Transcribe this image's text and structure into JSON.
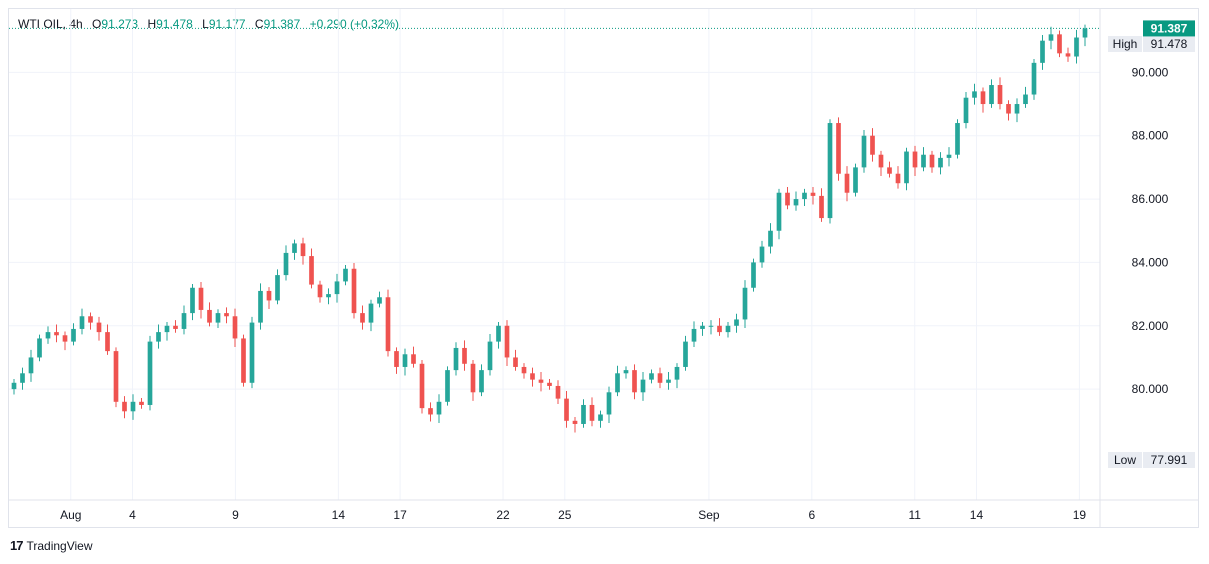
{
  "legend": {
    "symbol": "WTI OIL",
    "interval": "4h",
    "open_label": "O",
    "open": "91.273",
    "high_label": "H",
    "high": "91.478",
    "low_label": "L",
    "low": "91.177",
    "close_label": "C",
    "close": "91.387",
    "change": "+0.290 (+0.32%)"
  },
  "badges": {
    "high_label": "High",
    "high_value": "91.478",
    "last_value": "91.387",
    "low_label": "Low",
    "low_value": "77.991"
  },
  "footer": {
    "brand": "TradingView",
    "logo": "17"
  },
  "colors": {
    "up": "#26a69a",
    "down": "#ef5350",
    "last": "#089981",
    "grid": "#f0f3fa",
    "axis_text": "#131722"
  },
  "chart_data": {
    "type": "candlestick",
    "title": "WTI OIL, 4h",
    "ylim": [
      76.5,
      92.0
    ],
    "y_ticks": [
      80,
      82,
      84,
      86,
      88,
      90
    ],
    "y_tick_labels": [
      "80.000",
      "82.000",
      "84.000",
      "86.000",
      "88.000",
      "90.000"
    ],
    "x_tick_labels": [
      "Aug",
      "4",
      "9",
      "14",
      "17",
      "22",
      "25",
      "Sep",
      "6",
      "11",
      "14",
      "19"
    ],
    "x_tick_dates": [
      "2023-08-01",
      "2023-08-04",
      "2023-08-09",
      "2023-08-14",
      "2023-08-17",
      "2023-08-22",
      "2023-08-25",
      "2023-09-01",
      "2023-09-06",
      "2023-09-11",
      "2023-09-14",
      "2023-09-19"
    ],
    "high": 91.478,
    "low": 77.991,
    "last": 91.387,
    "grid": true,
    "close_series": [
      80.2,
      80.5,
      81.0,
      81.6,
      81.8,
      81.7,
      81.5,
      81.9,
      82.3,
      82.1,
      81.8,
      81.2,
      79.6,
      79.3,
      79.6,
      79.5,
      81.5,
      81.8,
      82.0,
      81.9,
      82.4,
      83.2,
      82.5,
      82.1,
      82.4,
      82.3,
      81.6,
      80.2,
      82.1,
      83.1,
      82.8,
      83.6,
      84.3,
      84.6,
      84.2,
      83.3,
      82.9,
      83.0,
      83.4,
      83.8,
      82.4,
      82.1,
      82.7,
      82.9,
      81.2,
      80.7,
      81.1,
      80.8,
      79.4,
      79.2,
      79.6,
      80.6,
      81.3,
      80.8,
      79.9,
      80.6,
      81.5,
      82.0,
      81.0,
      80.7,
      80.5,
      80.3,
      80.2,
      80.1,
      79.7,
      79.0,
      78.9,
      79.5,
      79.0,
      79.2,
      79.9,
      80.5,
      80.6,
      79.9,
      80.3,
      80.5,
      80.2,
      80.3,
      80.7,
      81.5,
      81.9,
      82.0,
      82.0,
      81.8,
      82.0,
      82.2,
      83.2,
      84.0,
      84.5,
      85.0,
      86.2,
      85.8,
      86.0,
      86.2,
      86.1,
      85.4,
      88.4,
      86.8,
      86.2,
      87.0,
      88.0,
      87.4,
      87.0,
      86.8,
      86.5,
      87.5,
      87.0,
      87.4,
      87.0,
      87.3,
      87.4,
      88.4,
      89.2,
      89.4,
      89.0,
      89.6,
      89.0,
      88.7,
      89.0,
      89.3,
      90.3,
      91.0,
      91.2,
      90.6,
      90.5,
      91.1,
      91.387
    ]
  }
}
